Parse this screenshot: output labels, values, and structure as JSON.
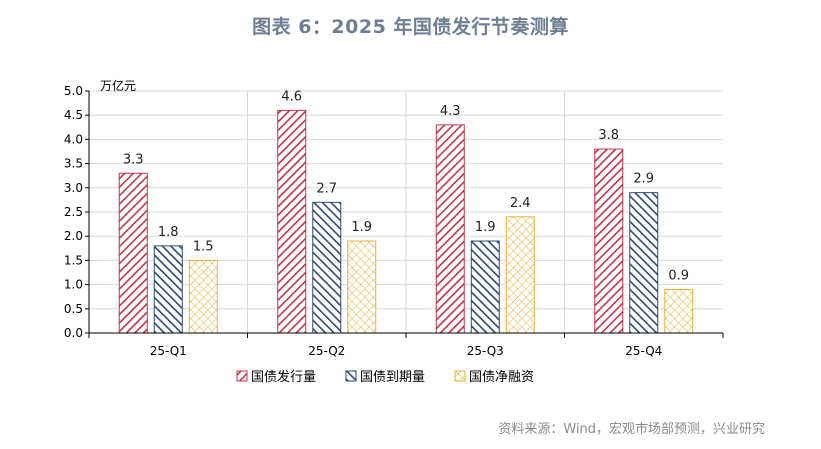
{
  "page": {
    "title": "图表 6：2025 年国债发行节奏测算",
    "source": "资料来源：Wind，宏观市场部预测，兴业研究"
  },
  "chart_data": {
    "type": "bar",
    "title": "图表 6：2025 年国债发行节奏测算",
    "ylabel": "万亿元",
    "xlabel": "",
    "ylim": [
      0,
      5
    ],
    "yticks": [
      "0.0",
      "0.5",
      "1.0",
      "1.5",
      "2.0",
      "2.5",
      "3.0",
      "3.5",
      "4.0",
      "4.5",
      "5.0"
    ],
    "grid": true,
    "legend_position": "bottom",
    "categories": [
      "25-Q1",
      "25-Q2",
      "25-Q3",
      "25-Q4"
    ],
    "series": [
      {
        "name": "国债发行量",
        "values": [
          3.3,
          4.6,
          4.3,
          3.8
        ],
        "color": "#c0354a",
        "pattern": "diag-right"
      },
      {
        "name": "国债到期量",
        "values": [
          1.8,
          2.7,
          1.9,
          2.9
        ],
        "color": "#2f4a73",
        "pattern": "diag-left"
      },
      {
        "name": "国债净融资",
        "values": [
          1.5,
          1.9,
          2.4,
          0.9
        ],
        "color": "#e5b23a",
        "pattern": "cross"
      }
    ],
    "data_labels": [
      [
        "3.3",
        "4.6",
        "4.3",
        "3.8"
      ],
      [
        "1.8",
        "2.7",
        "1.9",
        "2.9"
      ],
      [
        "1.5",
        "1.9",
        "2.4",
        "0.9"
      ]
    ]
  }
}
